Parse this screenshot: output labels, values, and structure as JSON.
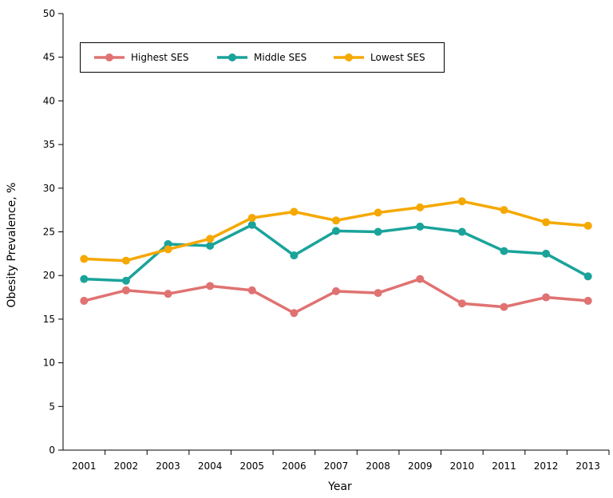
{
  "chart_data": {
    "type": "line",
    "title": "",
    "xlabel": "Year",
    "ylabel": "Obesity Prevalence, %",
    "ylim": [
      0,
      50
    ],
    "yticks": [
      0,
      5,
      10,
      15,
      20,
      25,
      30,
      35,
      40,
      45,
      50
    ],
    "categories": [
      "2001",
      "2002",
      "2003",
      "2004",
      "2005",
      "2006",
      "2007",
      "2008",
      "2009",
      "2010",
      "2011",
      "2012",
      "2013"
    ],
    "grid": false,
    "legend_placement": "top-left",
    "series": [
      {
        "name": "Highest SES",
        "color": "#e07272",
        "values": [
          17.1,
          18.3,
          17.9,
          18.8,
          18.3,
          15.7,
          18.2,
          18.0,
          19.6,
          16.8,
          16.4,
          17.5,
          17.1
        ]
      },
      {
        "name": "Middle SES",
        "color": "#1aa39a",
        "values": [
          19.6,
          19.4,
          23.6,
          23.4,
          25.8,
          22.3,
          25.1,
          25.0,
          25.6,
          25.0,
          22.8,
          22.5,
          19.9
        ]
      },
      {
        "name": "Lowest SES",
        "color": "#f5a800",
        "values": [
          21.9,
          21.7,
          23.0,
          24.2,
          26.6,
          27.3,
          26.3,
          27.2,
          27.8,
          28.5,
          27.5,
          26.1,
          25.7
        ]
      }
    ]
  }
}
